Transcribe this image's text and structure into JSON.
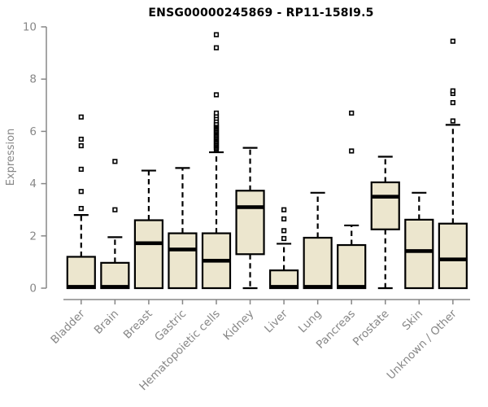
{
  "chart_data": {
    "type": "boxplot",
    "title": "ENSG00000245869 - RP11-158I9.5",
    "ylabel": "Expression",
    "xlabel": "",
    "ylim": [
      0,
      10
    ],
    "yticks": [
      0,
      2,
      4,
      6,
      8,
      10
    ],
    "grid": false,
    "legend": false,
    "categories": [
      "Bladder",
      "Brain",
      "Breast",
      "Gastric",
      "Hematopoietic cells",
      "Kidney",
      "Liver",
      "Lung",
      "Pancreas",
      "Prostate",
      "Skin",
      "Unknown / Other"
    ],
    "series": [
      {
        "category": "Bladder",
        "whisker_low": 0,
        "q1": 0,
        "median": 0.05,
        "q3": 1.2,
        "whisker_high": 2.8,
        "outliers": [
          3.05,
          3.7,
          4.55,
          5.45,
          5.7,
          6.55
        ]
      },
      {
        "category": "Brain",
        "whisker_low": 0,
        "q1": 0,
        "median": 0.05,
        "q3": 0.97,
        "whisker_high": 1.95,
        "outliers": [
          3.0,
          4.85
        ]
      },
      {
        "category": "Breast",
        "whisker_low": 0,
        "q1": 0,
        "median": 1.72,
        "q3": 2.6,
        "whisker_high": 4.5,
        "outliers": []
      },
      {
        "category": "Gastric",
        "whisker_low": 0,
        "q1": 0,
        "median": 1.48,
        "q3": 2.1,
        "whisker_high": 4.6,
        "outliers": []
      },
      {
        "category": "Hematopoietic cells",
        "whisker_low": 0,
        "q1": 0,
        "median": 1.05,
        "q3": 2.1,
        "whisker_high": 5.2,
        "outliers": [
          5.3,
          5.35,
          5.4,
          5.45,
          5.5,
          5.55,
          5.6,
          5.65,
          5.7,
          5.75,
          5.8,
          5.85,
          5.9,
          5.95,
          6.0,
          6.05,
          6.1,
          6.15,
          6.2,
          6.25,
          6.3,
          6.4,
          6.5,
          6.6,
          6.7,
          7.4,
          9.2,
          9.7
        ]
      },
      {
        "category": "Kidney",
        "whisker_low": 0,
        "q1": 1.3,
        "median": 3.1,
        "q3": 3.73,
        "whisker_high": 5.37,
        "outliers": []
      },
      {
        "category": "Liver",
        "whisker_low": 0,
        "q1": 0,
        "median": 0.05,
        "q3": 0.68,
        "whisker_high": 1.7,
        "outliers": [
          1.9,
          2.2,
          2.65,
          3.0
        ]
      },
      {
        "category": "Lung",
        "whisker_low": 0,
        "q1": 0,
        "median": 0.05,
        "q3": 1.93,
        "whisker_high": 3.65,
        "outliers": []
      },
      {
        "category": "Pancreas",
        "whisker_low": 0,
        "q1": 0,
        "median": 0.05,
        "q3": 1.65,
        "whisker_high": 2.4,
        "outliers": [
          5.25,
          6.7
        ]
      },
      {
        "category": "Prostate",
        "whisker_low": 0,
        "q1": 2.25,
        "median": 3.5,
        "q3": 4.05,
        "whisker_high": 5.03,
        "outliers": []
      },
      {
        "category": "Skin",
        "whisker_low": 0,
        "q1": 0,
        "median": 1.42,
        "q3": 2.62,
        "whisker_high": 3.65,
        "outliers": []
      },
      {
        "category": "Unknown / Other",
        "whisker_low": 0,
        "q1": 0,
        "median": 1.1,
        "q3": 2.47,
        "whisker_high": 6.25,
        "outliers": [
          6.4,
          7.1,
          7.45,
          7.55,
          9.45
        ]
      }
    ],
    "colors": {
      "box_fill": "#ECE6CE",
      "box_border": "#000000",
      "median": "#000000",
      "whisker": "#000000",
      "outlier_stroke": "#000000",
      "axis": "#878787",
      "tick_label": "#878787",
      "title": "#000000",
      "background": "#FFFFFF"
    }
  }
}
